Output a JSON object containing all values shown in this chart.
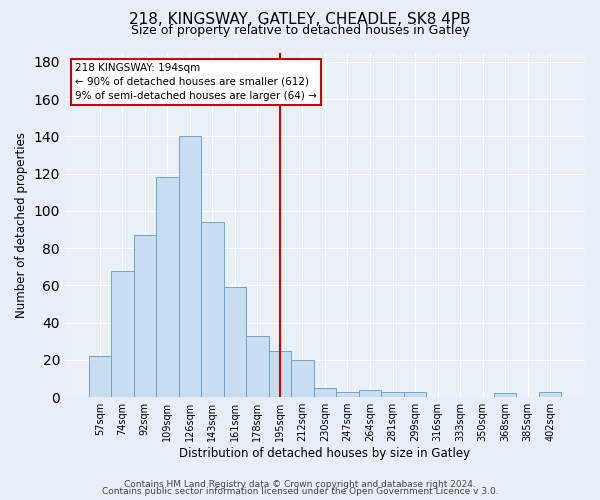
{
  "title": "218, KINGSWAY, GATLEY, CHEADLE, SK8 4PB",
  "subtitle": "Size of property relative to detached houses in Gatley",
  "xlabel": "Distribution of detached houses by size in Gatley",
  "ylabel": "Number of detached properties",
  "bar_labels": [
    "57sqm",
    "74sqm",
    "92sqm",
    "109sqm",
    "126sqm",
    "143sqm",
    "161sqm",
    "178sqm",
    "195sqm",
    "212sqm",
    "230sqm",
    "247sqm",
    "264sqm",
    "281sqm",
    "299sqm",
    "316sqm",
    "333sqm",
    "350sqm",
    "368sqm",
    "385sqm",
    "402sqm"
  ],
  "bar_values": [
    22,
    68,
    87,
    118,
    140,
    94,
    59,
    33,
    25,
    20,
    5,
    3,
    4,
    3,
    3,
    0,
    0,
    0,
    2,
    0,
    3
  ],
  "bar_color": "#c8ddef",
  "bar_edge_color": "#6699cc",
  "vline_color": "#cc0000",
  "annotation_title": "218 KINGSWAY: 194sqm",
  "annotation_line1": "← 90% of detached houses are smaller (612)",
  "annotation_line2": "9% of semi-detached houses are larger (64) →",
  "annotation_box_facecolor": "#ffffff",
  "annotation_box_edgecolor": "#cc0000",
  "ylim": [
    0,
    185
  ],
  "yticks": [
    0,
    20,
    40,
    60,
    80,
    100,
    120,
    140,
    160,
    180
  ],
  "footer_line1": "Contains HM Land Registry data © Crown copyright and database right 2024.",
  "footer_line2": "Contains public sector information licensed under the Open Government Licence v 3.0.",
  "background_color": "#e8eef8",
  "plot_background": "#eaf0f8",
  "grid_color": "#ffffff",
  "title_fontsize": 11,
  "subtitle_fontsize": 9,
  "axis_label_fontsize": 8.5,
  "tick_fontsize": 7,
  "footer_fontsize": 6.5
}
